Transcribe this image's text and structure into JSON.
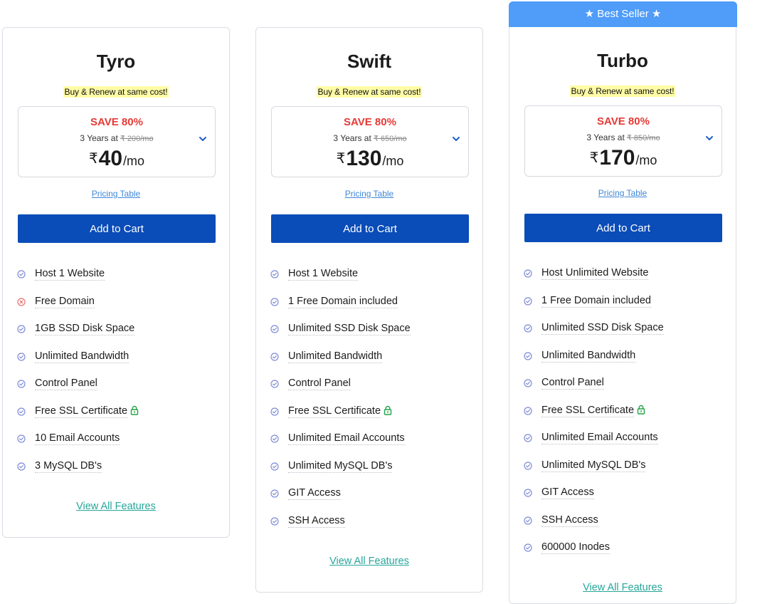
{
  "plans": [
    {
      "title": "Tyro",
      "tagline": "Buy & Renew at same cost!",
      "save": "SAVE 80%",
      "term_prefix": "3 Years at",
      "original_price": "₹ 200/mo",
      "currency": "₹",
      "price": "40",
      "per": "/mo",
      "pricing_table": "Pricing Table",
      "cta": "Add to Cart",
      "features": [
        {
          "text": "Host 1 Website",
          "status": "included",
          "lock": false
        },
        {
          "text": "Free Domain",
          "status": "excluded",
          "lock": false
        },
        {
          "text": "1GB SSD Disk Space",
          "status": "included",
          "lock": false
        },
        {
          "text": "Unlimited Bandwidth",
          "status": "included",
          "lock": false
        },
        {
          "text": "Control Panel",
          "status": "included",
          "lock": false
        },
        {
          "text": "Free SSL Certificate",
          "status": "included",
          "lock": true
        },
        {
          "text": "10 Email Accounts",
          "status": "included",
          "lock": false
        },
        {
          "text": "3 MySQL DB's",
          "status": "included",
          "lock": false
        }
      ],
      "view_all": "View All Features"
    },
    {
      "title": "Swift",
      "tagline": "Buy & Renew at same cost!",
      "save": "SAVE 80%",
      "term_prefix": "3 Years at",
      "original_price": "₹ 650/mo",
      "currency": "₹",
      "price": "130",
      "per": "/mo",
      "pricing_table": "Pricing Table",
      "cta": "Add to Cart",
      "features": [
        {
          "text": "Host 1 Website",
          "status": "included",
          "lock": false
        },
        {
          "text": "1 Free Domain included",
          "status": "included",
          "lock": false
        },
        {
          "text": "Unlimited SSD Disk Space",
          "status": "included",
          "lock": false
        },
        {
          "text": "Unlimited Bandwidth",
          "status": "included",
          "lock": false
        },
        {
          "text": "Control Panel",
          "status": "included",
          "lock": false
        },
        {
          "text": "Free SSL Certificate",
          "status": "included",
          "lock": true
        },
        {
          "text": "Unlimited Email Accounts",
          "status": "included",
          "lock": false
        },
        {
          "text": "Unlimited MySQL DB's",
          "status": "included",
          "lock": false
        },
        {
          "text": "GIT Access",
          "status": "included",
          "lock": false
        },
        {
          "text": "SSH Access",
          "status": "included",
          "lock": false
        }
      ],
      "view_all": "View All Features"
    },
    {
      "title": "Turbo",
      "badge": "★ Best Seller ★",
      "tagline": "Buy & Renew at same cost!",
      "save": "SAVE 80%",
      "term_prefix": "3 Years at",
      "original_price": "₹ 850/mo",
      "currency": "₹",
      "price": "170",
      "per": "/mo",
      "pricing_table": "Pricing Table",
      "cta": "Add to Cart",
      "features": [
        {
          "text": "Host Unlimited Website",
          "status": "included",
          "lock": false
        },
        {
          "text": "1 Free Domain included",
          "status": "included",
          "lock": false
        },
        {
          "text": "Unlimited SSD Disk Space",
          "status": "included",
          "lock": false
        },
        {
          "text": "Unlimited Bandwidth",
          "status": "included",
          "lock": false
        },
        {
          "text": "Control Panel",
          "status": "included",
          "lock": false
        },
        {
          "text": "Free SSL Certificate",
          "status": "included",
          "lock": true
        },
        {
          "text": "Unlimited Email Accounts",
          "status": "included",
          "lock": false
        },
        {
          "text": "Unlimited MySQL DB's",
          "status": "included",
          "lock": false
        },
        {
          "text": "GIT Access",
          "status": "included",
          "lock": false
        },
        {
          "text": "SSH Access",
          "status": "included",
          "lock": false
        },
        {
          "text": "600000 Inodes",
          "status": "included",
          "lock": false
        }
      ],
      "view_all": "View All Features"
    }
  ],
  "colors": {
    "button": "#0a4cb8",
    "badge": "#4f9cf9",
    "save": "#e53935",
    "link": "#3f87d8",
    "view_all": "#26a69a",
    "included_icon": "#7e8bd6",
    "excluded_icon": "#e57373",
    "lock_icon": "#22a447",
    "highlight": "#fffca6"
  },
  "icons": {
    "included": "check-circle-icon",
    "excluded": "x-circle-icon",
    "lock": "lock-icon",
    "dropdown": "chevron-down-icon"
  }
}
